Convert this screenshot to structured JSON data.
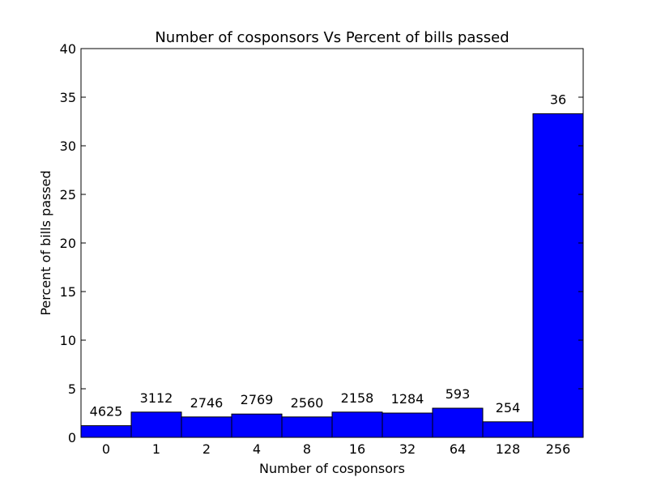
{
  "chart_data": {
    "type": "bar",
    "title": "Number of cosponsors Vs Percent of bills passed",
    "xlabel": "Number of cosponsors",
    "ylabel": "Percent of bills passed",
    "ylim": [
      0,
      40
    ],
    "yticks": [
      "0",
      "5",
      "10",
      "15",
      "20",
      "25",
      "30",
      "35",
      "40"
    ],
    "categories": [
      "0",
      "1",
      "2",
      "4",
      "8",
      "16",
      "32",
      "64",
      "128",
      "256"
    ],
    "values": [
      1.2,
      2.6,
      2.1,
      2.4,
      2.1,
      2.6,
      2.5,
      3.0,
      1.6,
      33.3
    ],
    "bar_labels": [
      "4625",
      "3112",
      "2746",
      "2769",
      "2560",
      "2158",
      "1284",
      "593",
      "254",
      "36"
    ],
    "bar_color": "#0000ff",
    "grid": false,
    "legend": "none"
  }
}
